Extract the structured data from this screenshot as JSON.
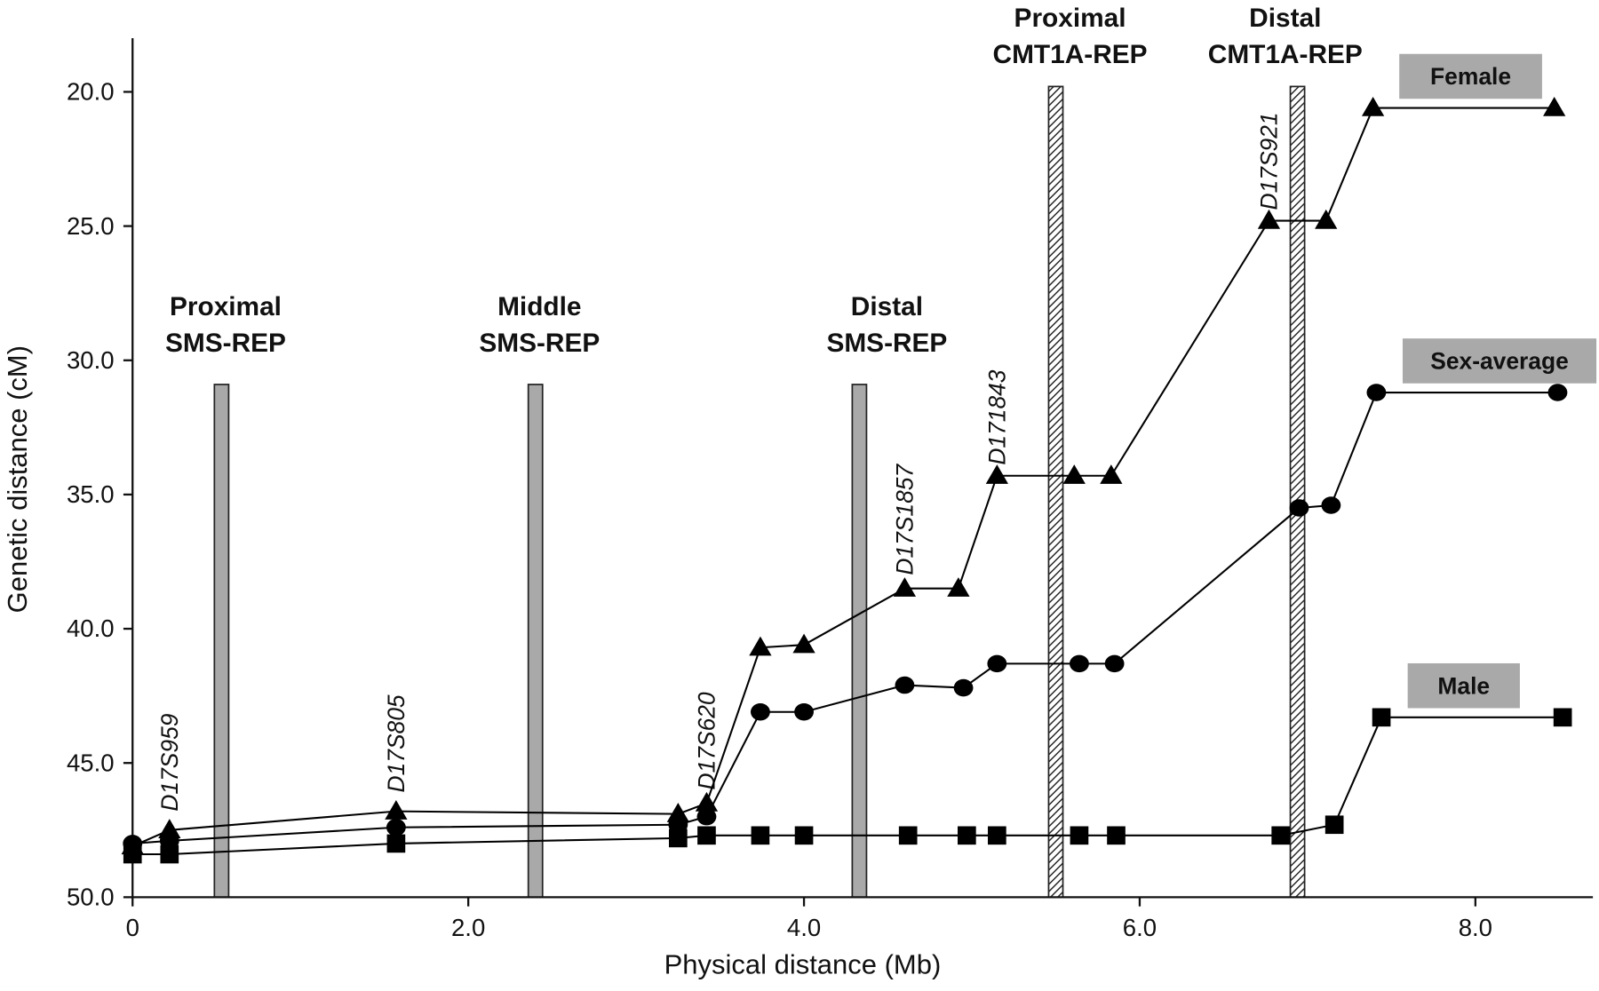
{
  "chart_data": {
    "type": "line",
    "xlabel": "Physical distance (Mb)",
    "ylabel": "Genetic distance (cM)",
    "xlim": [
      0,
      8.7
    ],
    "ylim": [
      50,
      18
    ],
    "xticks": [
      0,
      {
        "value": 2,
        "label": "2.0"
      },
      {
        "value": 4,
        "label": "4.0"
      },
      {
        "value": 6,
        "label": "6.0"
      },
      {
        "value": 8,
        "label": "8.0"
      }
    ],
    "yticks": [
      {
        "value": 20,
        "label": "20.0"
      },
      {
        "value": 25,
        "label": "25.0"
      },
      {
        "value": 30,
        "label": "30.0"
      },
      {
        "value": 35,
        "label": "35.0"
      },
      {
        "value": 40,
        "label": "40.0"
      },
      {
        "value": 45,
        "label": "45.0"
      },
      {
        "value": 50,
        "label": "50.0"
      }
    ],
    "series": [
      {
        "name": "Female",
        "marker": "triangle",
        "color": "#000000",
        "x": [
          0,
          0.22,
          1.57,
          3.25,
          3.42,
          3.74,
          4.0,
          4.6,
          4.92,
          5.15,
          5.61,
          5.83,
          6.77,
          7.11,
          7.39,
          8.47
        ],
        "values": [
          48.1,
          47.5,
          46.8,
          46.9,
          46.5,
          40.7,
          40.6,
          38.5,
          38.5,
          34.3,
          34.3,
          34.3,
          24.8,
          24.8,
          20.6,
          20.6
        ]
      },
      {
        "name": "Sex-average",
        "marker": "circle",
        "color": "#000000",
        "x": [
          0,
          0.22,
          1.57,
          3.25,
          3.42,
          3.74,
          4.0,
          4.6,
          4.95,
          5.15,
          5.64,
          5.85,
          6.95,
          7.14,
          7.41,
          8.49
        ],
        "values": [
          48.0,
          47.9,
          47.4,
          47.3,
          47.0,
          43.1,
          43.1,
          42.1,
          42.2,
          41.3,
          41.3,
          41.3,
          35.5,
          35.4,
          31.2,
          31.2
        ]
      },
      {
        "name": "Male",
        "marker": "square",
        "color": "#000000",
        "x": [
          0,
          0.22,
          1.57,
          3.25,
          3.42,
          3.74,
          4.0,
          4.62,
          4.97,
          5.15,
          5.64,
          5.86,
          6.84,
          7.16,
          7.44,
          8.52
        ],
        "values": [
          48.4,
          48.4,
          48.0,
          47.8,
          47.7,
          47.7,
          47.7,
          47.7,
          47.7,
          47.7,
          47.7,
          47.7,
          47.7,
          47.3,
          43.3,
          43.3
        ]
      }
    ],
    "regions": [
      {
        "lines": [
          "Proximal",
          "SMS-REP"
        ],
        "x": 0.53,
        "top": 30.9,
        "fill": "solid"
      },
      {
        "lines": [
          "Middle",
          "SMS-REP"
        ],
        "x": 2.4,
        "top": 30.9,
        "fill": "solid"
      },
      {
        "lines": [
          "Distal",
          "SMS-REP"
        ],
        "x": 4.33,
        "top": 30.9,
        "fill": "solid"
      },
      {
        "lines": [
          "Proximal",
          "CMT1A-REP"
        ],
        "x": 5.5,
        "top": 19.8,
        "fill": "hatched"
      },
      {
        "lines": [
          "Distal",
          "CMT1A-REP"
        ],
        "x": 6.94,
        "top": 19.8,
        "fill": "hatched"
      }
    ],
    "annotations": [
      {
        "text": "D17S959",
        "x": 0.22,
        "y": 46.8
      },
      {
        "text": "D17S805",
        "x": 1.57,
        "y": 46.1
      },
      {
        "text": "D17S620",
        "x": 3.42,
        "y": 46.0
      },
      {
        "text": "D17S1857",
        "x": 4.6,
        "y": 38.0
      },
      {
        "text": "D171843",
        "x": 5.15,
        "y": 33.9
      },
      {
        "text": "D17S921",
        "x": 6.77,
        "y": 24.4
      }
    ]
  }
}
